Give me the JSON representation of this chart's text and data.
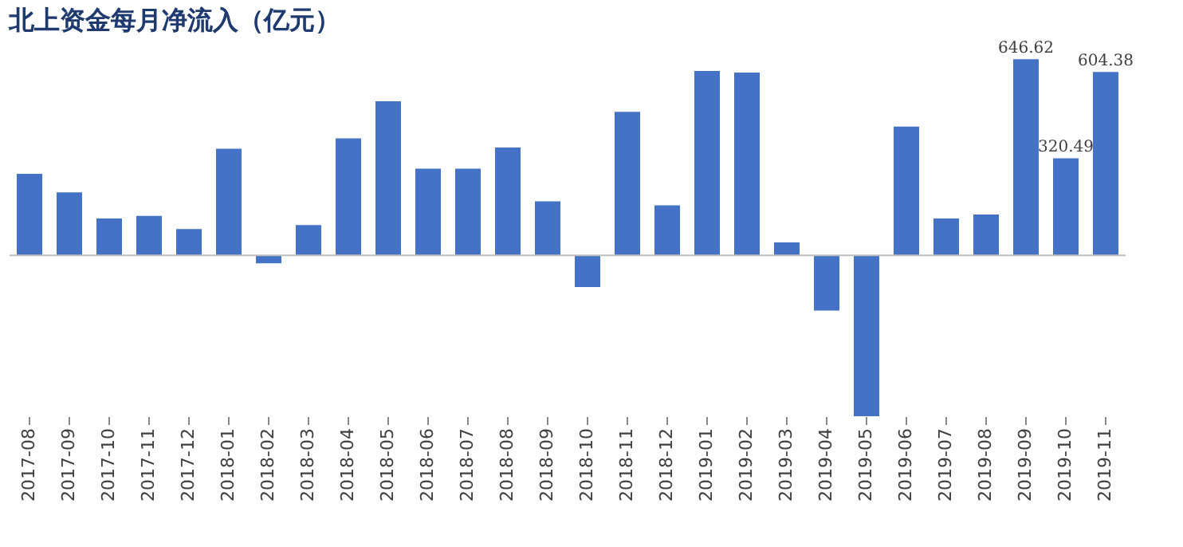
{
  "chart_data": {
    "type": "bar",
    "title": "北上资金每月净流入（亿元）",
    "categories": [
      "2017-08",
      "2017-09",
      "2017-10",
      "2017-11",
      "2017-12",
      "2018-01",
      "2018-02",
      "2018-03",
      "2018-04",
      "2018-05",
      "2018-06",
      "2018-07",
      "2018-08",
      "2018-09",
      "2018-10",
      "2018-11",
      "2018-12",
      "2019-01",
      "2019-02",
      "2019-03",
      "2019-04",
      "2019-05",
      "2019-06",
      "2019-07",
      "2019-08",
      "2019-09",
      "2019-10",
      "2019-11"
    ],
    "values": [
      269,
      208,
      122,
      130,
      87,
      352,
      -26,
      100,
      386,
      508,
      286,
      286,
      356,
      178,
      -104,
      473,
      165,
      608,
      603,
      43,
      -182,
      -530,
      425,
      122,
      135,
      646.62,
      320.49,
      604.38
    ],
    "value_labels": [
      null,
      null,
      null,
      null,
      null,
      null,
      null,
      null,
      null,
      null,
      null,
      null,
      null,
      null,
      null,
      null,
      null,
      null,
      null,
      null,
      null,
      null,
      null,
      null,
      null,
      "646.62",
      "320.49",
      "604.38"
    ],
    "color": "#4472c4",
    "tick_labels": "x",
    "grid": false,
    "ref_lines": [
      {
        "axis": "y",
        "value": 0,
        "color": "#bfbfbf"
      }
    ]
  }
}
